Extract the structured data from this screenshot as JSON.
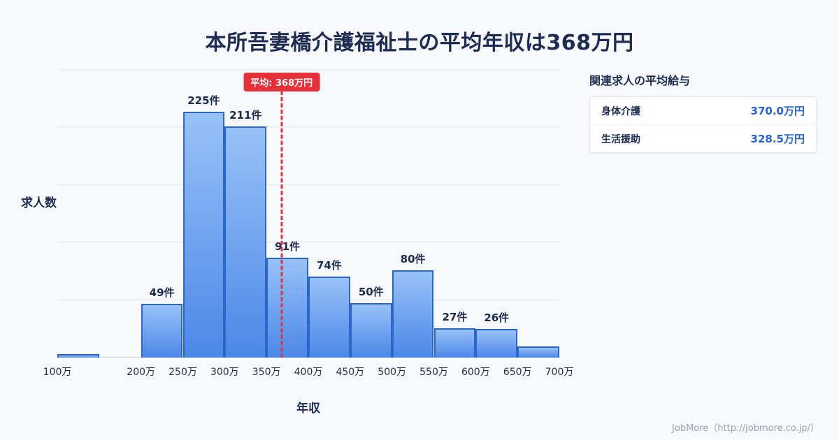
{
  "title": "本所吾妻橋介護福祉士の平均年収は368万円",
  "chart_data": {
    "type": "bar",
    "title": "本所吾妻橋介護福祉士の平均年収は368万円",
    "xlabel": "年収",
    "ylabel": "求人数",
    "x_domain": [
      100,
      700
    ],
    "ylim": [
      0,
      263
    ],
    "grid_divisions": 5,
    "legend": "none",
    "x_ticks": [
      {
        "value": 100,
        "label": "100万"
      },
      {
        "value": 200,
        "label": "200万"
      },
      {
        "value": 250,
        "label": "250万"
      },
      {
        "value": 300,
        "label": "300万"
      },
      {
        "value": 350,
        "label": "350万"
      },
      {
        "value": 400,
        "label": "400万"
      },
      {
        "value": 450,
        "label": "450万"
      },
      {
        "value": 500,
        "label": "500万"
      },
      {
        "value": 550,
        "label": "550万"
      },
      {
        "value": 600,
        "label": "600万"
      },
      {
        "value": 650,
        "label": "650万"
      },
      {
        "value": 700,
        "label": "700万"
      }
    ],
    "bars": [
      {
        "start": 100,
        "end": 150,
        "value": 3,
        "label": ""
      },
      {
        "start": 200,
        "end": 250,
        "value": 49,
        "label": "49件"
      },
      {
        "start": 250,
        "end": 300,
        "value": 225,
        "label": "225件"
      },
      {
        "start": 300,
        "end": 350,
        "value": 211,
        "label": "211件"
      },
      {
        "start": 350,
        "end": 400,
        "value": 91,
        "label": "91件"
      },
      {
        "start": 400,
        "end": 450,
        "value": 74,
        "label": "74件"
      },
      {
        "start": 450,
        "end": 500,
        "value": 50,
        "label": "50件"
      },
      {
        "start": 500,
        "end": 550,
        "value": 80,
        "label": "80件"
      },
      {
        "start": 550,
        "end": 600,
        "value": 27,
        "label": "27件"
      },
      {
        "start": 600,
        "end": 650,
        "value": 26,
        "label": "26件"
      },
      {
        "start": 650,
        "end": 700,
        "value": 10,
        "label": ""
      }
    ],
    "mean_line": {
      "x": 368,
      "label": "平均: 368万円",
      "color": "#e6313b"
    }
  },
  "side_panel": {
    "heading": "関連求人の平均給与",
    "rows": [
      {
        "label": "身体介護",
        "value": "370.0万円"
      },
      {
        "label": "生活援助",
        "value": "328.5万円"
      }
    ]
  },
  "footer": {
    "credit": "JobMore（http://jobmore.co.jp/）"
  },
  "colors": {
    "background": "#f7f9fc",
    "title": "#1e2b52",
    "bar_fill_top": "#98c1f7",
    "bar_fill_bottom": "#4c87e8",
    "bar_border": "#2b66cb",
    "mean_red": "#e6313b",
    "value_blue": "#2563d4"
  }
}
